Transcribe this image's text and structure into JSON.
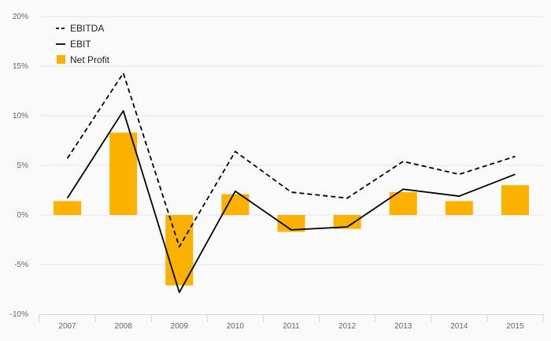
{
  "chart_data": {
    "type": "bar",
    "categories": [
      "2007",
      "2008",
      "2009",
      "2010",
      "2011",
      "2012",
      "2013",
      "2014",
      "2015"
    ],
    "y_ticks": [
      "-10%",
      "-5%",
      "0%",
      "5%",
      "10%",
      "15%",
      "20%"
    ],
    "ylim": [
      -10,
      20
    ],
    "grid": true,
    "legend_position": "top-left",
    "series": [
      {
        "name": "EBITDA",
        "type": "line",
        "style": "dashed",
        "color": "#000000",
        "values": [
          5.7,
          14.3,
          -3.2,
          6.4,
          2.3,
          1.7,
          5.4,
          4.1,
          5.9
        ]
      },
      {
        "name": "EBIT",
        "type": "line",
        "style": "solid",
        "color": "#000000",
        "values": [
          1.7,
          10.5,
          -7.8,
          2.4,
          -1.5,
          -1.2,
          2.6,
          1.9,
          4.1
        ]
      },
      {
        "name": "Net Profit",
        "type": "bar",
        "color": "#FBB100",
        "values": [
          1.4,
          8.3,
          -7.1,
          2.1,
          -1.7,
          -1.4,
          2.3,
          1.4,
          3.0
        ]
      }
    ]
  },
  "legend": {
    "items": [
      {
        "label": "EBITDA",
        "symbol": "dashed-line"
      },
      {
        "label": "EBIT",
        "symbol": "solid-line"
      },
      {
        "label": "Net Profit",
        "symbol": "bar-swatch"
      }
    ]
  }
}
